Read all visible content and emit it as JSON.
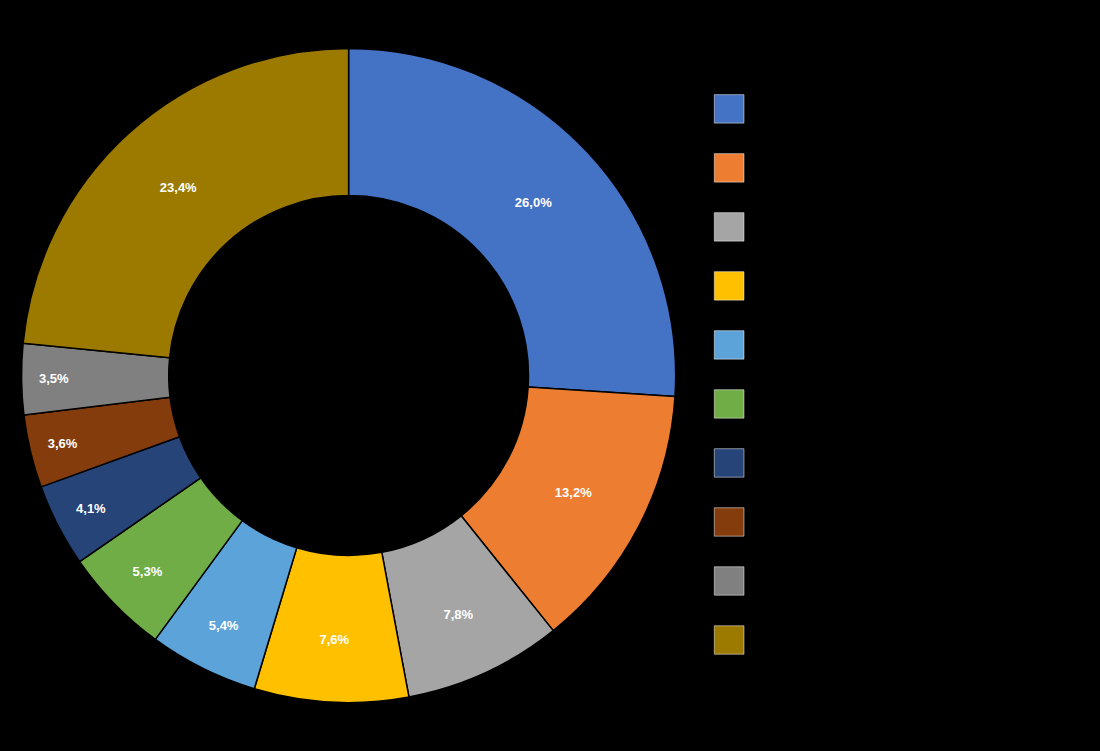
{
  "chart_data": {
    "type": "pie",
    "values": [
      26.0,
      13.2,
      7.8,
      7.6,
      5.4,
      5.3,
      4.1,
      3.6,
      3.5,
      23.4
    ],
    "value_labels": [
      "26,0%",
      "13,2%",
      "7,8%",
      "7,6%",
      "5,4%",
      "5,3%",
      "4,1%",
      "3,6%",
      "3,5%",
      "23,4%"
    ],
    "colors": [
      "#4472C4",
      "#ED7D31",
      "#A5A5A5",
      "#FFC000",
      "#5BA3D9",
      "#70AD47",
      "#264478",
      "#843C0C",
      "#808080",
      "#9C7A00"
    ],
    "data_labels": true
  }
}
